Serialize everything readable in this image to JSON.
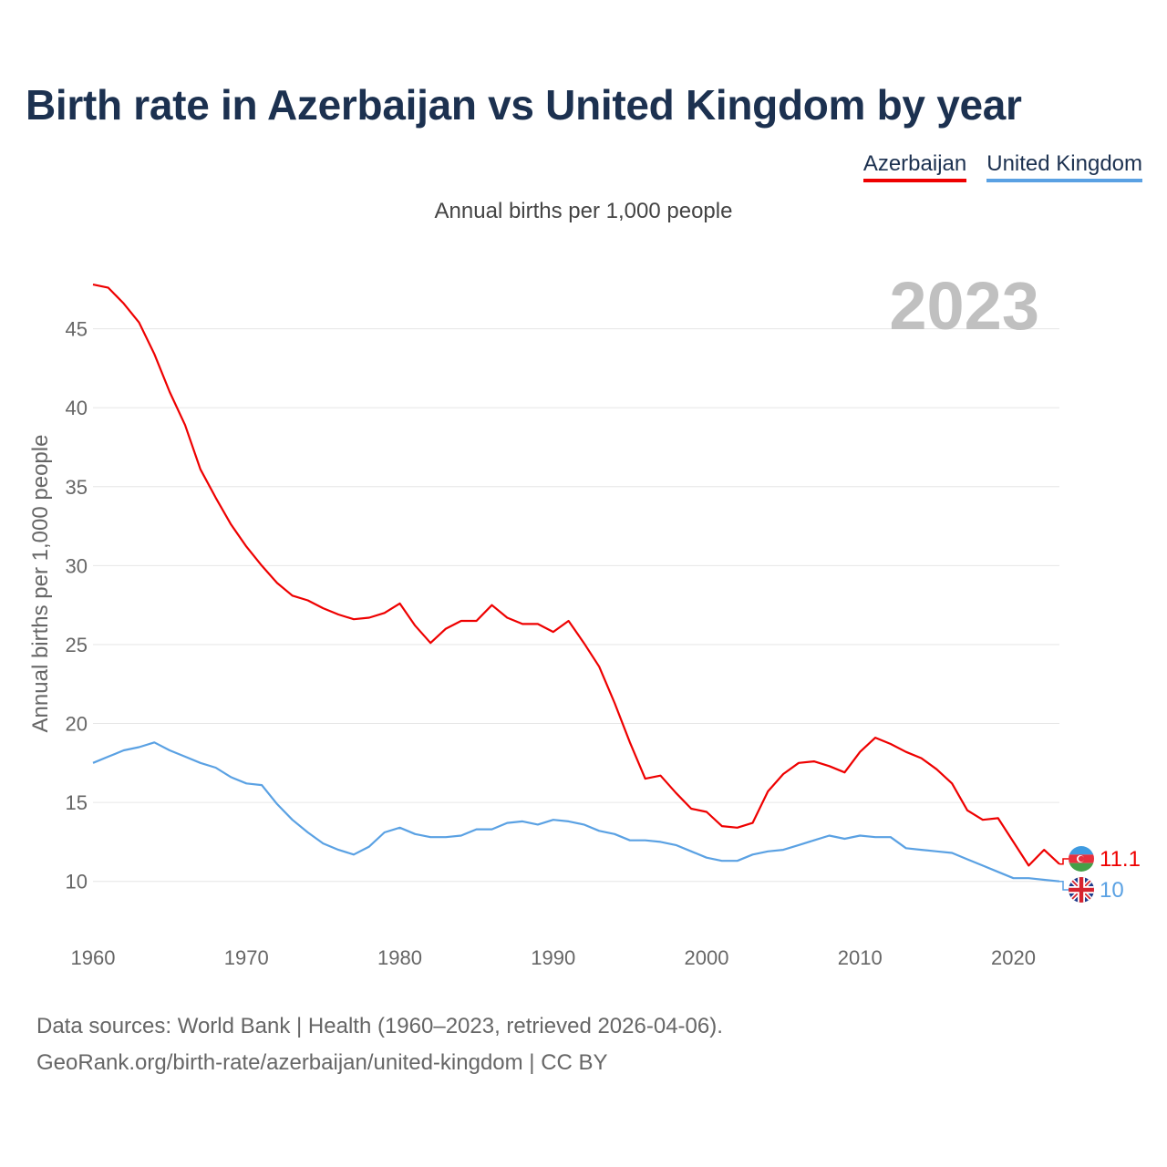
{
  "title": "Birth rate in Azerbaijan vs United Kingdom by year",
  "legend": {
    "azerbaijan": "Azerbaijan",
    "uk": "United Kingdom"
  },
  "subtitle": "Annual births per 1,000 people",
  "year_badge": "2023",
  "colors": {
    "azerbaijan": "#ee0000",
    "uk": "#5aa1e3",
    "grid": "#e6e6e6",
    "axis_text": "#666666",
    "badge": "#c0c0c0"
  },
  "chart_data": {
    "type": "line",
    "title": "Birth rate in Azerbaijan vs United Kingdom by year",
    "xlabel": "",
    "ylabel": "Annual births per 1,000 people",
    "xlim": [
      1960,
      2023
    ],
    "ylim": [
      7.5,
      48.5
    ],
    "xticks": [
      1960,
      1970,
      1980,
      1990,
      2000,
      2010,
      2020
    ],
    "yticks": [
      10,
      15,
      20,
      25,
      30,
      35,
      40,
      45
    ],
    "grid": true,
    "x": [
      1960,
      1961,
      1962,
      1963,
      1964,
      1965,
      1966,
      1967,
      1968,
      1969,
      1970,
      1971,
      1972,
      1973,
      1974,
      1975,
      1976,
      1977,
      1978,
      1979,
      1980,
      1981,
      1982,
      1983,
      1984,
      1985,
      1986,
      1987,
      1988,
      1989,
      1990,
      1991,
      1992,
      1993,
      1994,
      1995,
      1996,
      1997,
      1998,
      1999,
      2000,
      2001,
      2002,
      2003,
      2004,
      2005,
      2006,
      2007,
      2008,
      2009,
      2010,
      2011,
      2012,
      2013,
      2014,
      2015,
      2016,
      2017,
      2018,
      2019,
      2020,
      2021,
      2022,
      2023
    ],
    "series": [
      {
        "name": "Azerbaijan",
        "end_label": "11.1",
        "values": [
          47.8,
          47.6,
          46.6,
          45.4,
          43.4,
          41.0,
          38.9,
          36.1,
          34.3,
          32.6,
          31.2,
          30.0,
          28.9,
          28.1,
          27.8,
          27.3,
          26.9,
          26.6,
          26.7,
          27.0,
          27.6,
          26.2,
          25.1,
          26.0,
          26.5,
          26.5,
          27.5,
          26.7,
          26.3,
          26.3,
          25.8,
          26.5,
          25.1,
          23.6,
          21.3,
          18.8,
          16.5,
          16.7,
          15.6,
          14.6,
          14.4,
          13.5,
          13.4,
          13.7,
          15.7,
          16.8,
          17.5,
          17.6,
          17.3,
          16.9,
          18.2,
          19.1,
          18.7,
          18.2,
          17.8,
          17.1,
          16.2,
          14.5,
          13.9,
          14.0,
          12.5,
          11.0,
          12.0,
          11.1
        ]
      },
      {
        "name": "United Kingdom",
        "end_label": "10",
        "values": [
          17.5,
          17.9,
          18.3,
          18.5,
          18.8,
          18.3,
          17.9,
          17.5,
          17.2,
          16.6,
          16.2,
          16.1,
          14.9,
          13.9,
          13.1,
          12.4,
          12.0,
          11.7,
          12.2,
          13.1,
          13.4,
          13.0,
          12.8,
          12.8,
          12.9,
          13.3,
          13.3,
          13.7,
          13.8,
          13.6,
          13.9,
          13.8,
          13.6,
          13.2,
          13.0,
          12.6,
          12.6,
          12.5,
          12.3,
          11.9,
          11.5,
          11.3,
          11.3,
          11.7,
          11.9,
          12.0,
          12.3,
          12.6,
          12.9,
          12.7,
          12.9,
          12.8,
          12.8,
          12.1,
          12.0,
          11.9,
          11.8,
          11.4,
          11.0,
          10.6,
          10.2,
          10.2,
          10.1,
          10.0
        ]
      }
    ]
  },
  "footer": {
    "line1": "Data sources: World Bank | Health (1960–2023, retrieved 2026-04-06).",
    "line2": "GeoRank.org/birth-rate/azerbaijan/united-kingdom | CC BY"
  }
}
